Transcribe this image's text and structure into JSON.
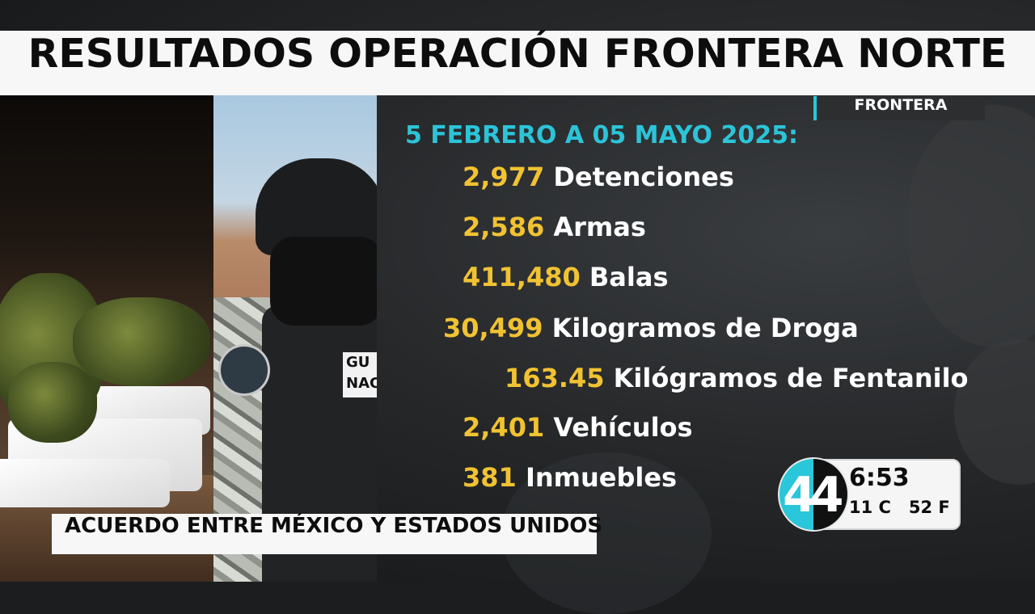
{
  "header": {
    "title": "RESULTADOS OPERACIÓN FRONTERA NORTE"
  },
  "section_tag": "FRONTERA",
  "date_range": "5 FEBRERO A 05 MAYO 2025:",
  "stats": [
    {
      "value": "2,977",
      "label": "Detenciones"
    },
    {
      "value": "2,586",
      "label": "Armas"
    },
    {
      "value": "411,480",
      "label": "Balas"
    },
    {
      "value": "30,499",
      "label": "Kilogramos de Droga"
    },
    {
      "value": "163.45",
      "label": "Kilógramos de Fentanilo"
    },
    {
      "value": "2,401",
      "label": "Vehículos"
    },
    {
      "value": "381",
      "label": "Inmuebles"
    }
  ],
  "photo": {
    "vest_text": "GU NAC"
  },
  "lower_third": "ACUERDO ENTRE MÉXICO Y ESTADOS UNIDOS",
  "clock": {
    "logo": "44",
    "time": "6:53",
    "temperature": "11 C   52 F"
  },
  "colors": {
    "accent": "#2cc4d8",
    "number": "#f1c232",
    "text": "#ffffff"
  }
}
